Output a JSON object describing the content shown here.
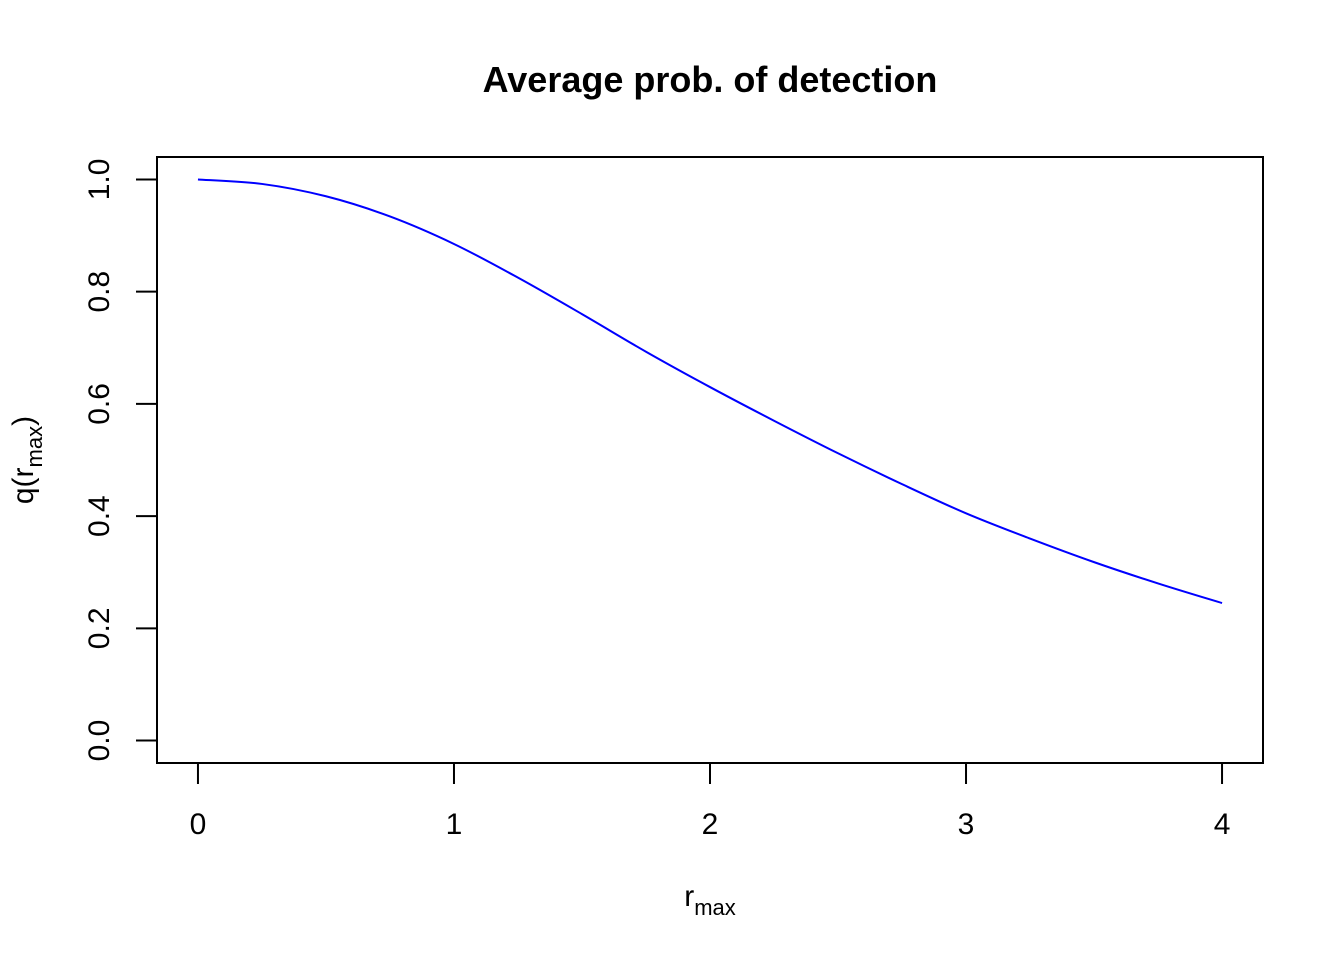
{
  "chart_data": {
    "type": "line",
    "title": "Average prob. of detection",
    "xlabel": {
      "base": "r",
      "subscript": "max"
    },
    "ylabel": {
      "prefix": "q(",
      "base": "r",
      "subscript": "max",
      "suffix": ")"
    },
    "xlim": [
      -0.16,
      4.16
    ],
    "ylim": [
      -0.04,
      1.04
    ],
    "x_ticks": [
      0,
      1,
      2,
      3,
      4
    ],
    "x_tick_labels": [
      "0",
      "1",
      "2",
      "3",
      "4"
    ],
    "y_ticks": [
      0.0,
      0.2,
      0.4,
      0.6,
      0.8,
      1.0
    ],
    "y_tick_labels": [
      "0.0",
      "0.2",
      "0.4",
      "0.6",
      "0.8",
      "1.0"
    ],
    "grid": false,
    "series": [
      {
        "color": "#0000ff",
        "x": [
          0,
          0.25,
          0.5,
          0.75,
          1.0,
          1.25,
          1.5,
          1.75,
          2.0,
          2.25,
          2.5,
          2.75,
          3.0,
          3.25,
          3.5,
          3.75,
          4.0
        ],
        "y": [
          1.0,
          0.992,
          0.97,
          0.934,
          0.885,
          0.825,
          0.76,
          0.693,
          0.63,
          0.57,
          0.512,
          0.457,
          0.405,
          0.36,
          0.318,
          0.28,
          0.245
        ]
      }
    ]
  }
}
